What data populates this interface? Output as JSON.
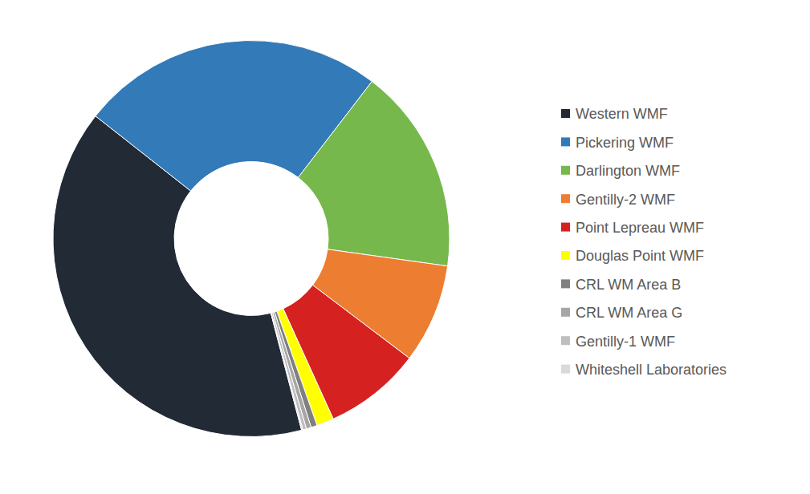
{
  "chart_data": {
    "type": "pie",
    "categories": [
      "Western WMF",
      "Pickering WMF",
      "Darlington WMF",
      "Gentilly-2 WMF",
      "Point Lepreau WMF",
      "Douglas Point WMF",
      "CRL WM Area B",
      "CRL WM Area G",
      "Gentilly-1 WMF",
      "Whiteshell Laboratories"
    ],
    "values": [
      39.7,
      24.8,
      16.8,
      8.1,
      7.9,
      1.4,
      0.5,
      0.4,
      0.3,
      0.1
    ],
    "colors": [
      "#222a35",
      "#337ab8",
      "#76b84b",
      "#ed7d31",
      "#d62121",
      "#ffff00",
      "#808080",
      "#a6a6a6",
      "#bfbfbf",
      "#d9d9d9"
    ],
    "legend": "right"
  }
}
